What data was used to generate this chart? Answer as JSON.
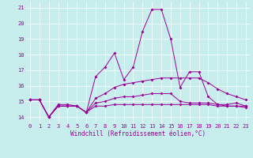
{
  "xlabel": "Windchill (Refroidissement éolien,°C)",
  "bg_color": "#c8eded",
  "line_color": "#990099",
  "grid_color": "#ffffff",
  "x_ticks": [
    0,
    1,
    2,
    3,
    4,
    5,
    6,
    7,
    8,
    9,
    10,
    11,
    12,
    13,
    14,
    15,
    16,
    17,
    18,
    19,
    20,
    21,
    22,
    23
  ],
  "y_ticks": [
    14,
    15,
    16,
    17,
    18,
    19,
    20,
    21
  ],
  "ylim": [
    13.6,
    21.4
  ],
  "xlim": [
    -0.5,
    23.5
  ],
  "series1_x": [
    0,
    1,
    2,
    3,
    4,
    5,
    6,
    7,
    8,
    9,
    10,
    11,
    12,
    13,
    14,
    15,
    16,
    17,
    18,
    19,
    20,
    21,
    22,
    23
  ],
  "series1_y": [
    15.1,
    15.1,
    14.0,
    14.8,
    14.8,
    14.7,
    14.3,
    16.6,
    17.2,
    18.1,
    16.4,
    17.2,
    19.5,
    20.9,
    20.9,
    19.0,
    15.9,
    16.9,
    16.9,
    15.3,
    14.8,
    14.8,
    14.9,
    14.7
  ],
  "series2_x": [
    0,
    1,
    2,
    3,
    4,
    5,
    6,
    7,
    8,
    9,
    10,
    11,
    12,
    13,
    14,
    15,
    16,
    17,
    18,
    19,
    20,
    21,
    22,
    23
  ],
  "series2_y": [
    15.1,
    15.1,
    14.0,
    14.7,
    14.7,
    14.7,
    14.3,
    15.2,
    15.5,
    15.9,
    16.1,
    16.2,
    16.3,
    16.4,
    16.5,
    16.5,
    16.5,
    16.5,
    16.5,
    16.2,
    15.8,
    15.5,
    15.3,
    15.1
  ],
  "series3_x": [
    0,
    1,
    2,
    3,
    4,
    5,
    6,
    7,
    8,
    9,
    10,
    11,
    12,
    13,
    14,
    15,
    16,
    17,
    18,
    19,
    20,
    21,
    22,
    23
  ],
  "series3_y": [
    15.1,
    15.1,
    14.0,
    14.7,
    14.7,
    14.7,
    14.3,
    14.9,
    15.0,
    15.2,
    15.3,
    15.3,
    15.4,
    15.5,
    15.5,
    15.5,
    15.0,
    14.9,
    14.9,
    14.9,
    14.8,
    14.7,
    14.7,
    14.7
  ],
  "series4_x": [
    0,
    1,
    2,
    3,
    4,
    5,
    6,
    7,
    8,
    9,
    10,
    11,
    12,
    13,
    14,
    15,
    16,
    17,
    18,
    19,
    20,
    21,
    22,
    23
  ],
  "series4_y": [
    15.1,
    15.1,
    14.0,
    14.7,
    14.7,
    14.7,
    14.3,
    14.7,
    14.7,
    14.8,
    14.8,
    14.8,
    14.8,
    14.8,
    14.8,
    14.8,
    14.8,
    14.8,
    14.8,
    14.8,
    14.7,
    14.7,
    14.7,
    14.6
  ],
  "marker": "D",
  "markersize": 2.0,
  "linewidth": 0.7,
  "xlabel_fontsize": 5.5,
  "tick_fontsize": 5.0
}
